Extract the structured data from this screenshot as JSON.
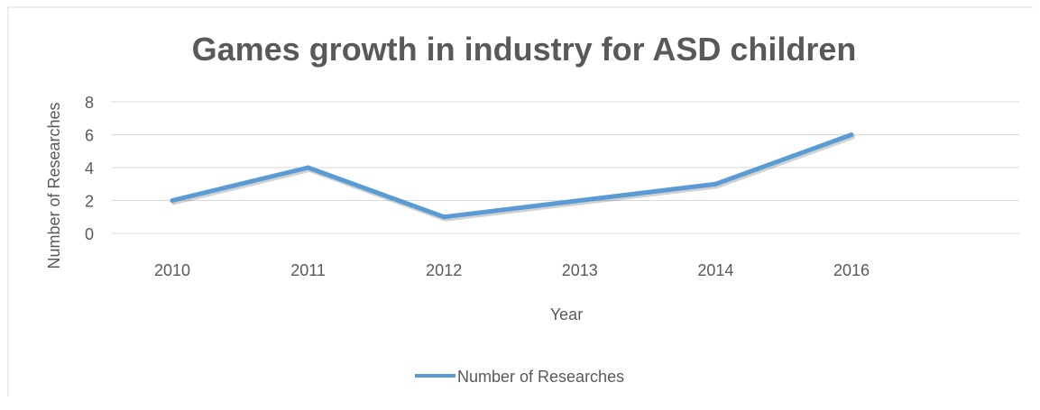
{
  "chart_data": {
    "type": "line",
    "title": "Games growth in industry for ASD children",
    "xlabel": "Year",
    "ylabel": "Number of Researches",
    "categories": [
      "2010",
      "2011",
      "2012",
      "2013",
      "2014",
      "2016"
    ],
    "series": [
      {
        "name": "Number of Researches",
        "values": [
          2,
          4,
          1,
          2,
          3,
          6
        ],
        "color": "#5B9BD5"
      }
    ],
    "ylim": [
      0,
      8
    ],
    "yticks": [
      0,
      2,
      4,
      6,
      8
    ],
    "grid": true,
    "legend_position": "bottom",
    "colors": {
      "title": "#595959",
      "axis_text": "#595959",
      "grid": "#D9D9D9",
      "frame": "#D9D9D9"
    }
  }
}
